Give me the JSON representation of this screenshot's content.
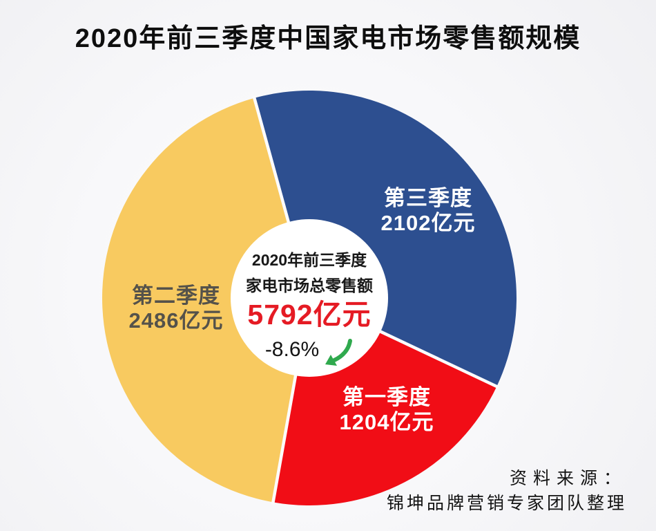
{
  "chart_data": {
    "type": "pie",
    "title": "2020年前三季度中国家电市场零售额规模",
    "unit": "亿元",
    "total": 5792,
    "start_angle_deg": -105.4,
    "legend_position": "labels-on-slices",
    "slices": [
      {
        "name": "第三季度",
        "value": 2102,
        "value_label": "2102亿元",
        "color": "#2d4f90",
        "label_color": "#ffffff"
      },
      {
        "name": "第一季度",
        "value": 1204,
        "value_label": "1204亿元",
        "color": "#f10d16",
        "label_color": "#ffffff"
      },
      {
        "name": "第二季度",
        "value": 2486,
        "value_label": "2486亿元",
        "color": "#f8ca60",
        "label_color": "#55524a"
      }
    ],
    "center": {
      "line1": "2020年前三季度",
      "line2": "家电市场总零售额",
      "value_label": "5792亿元",
      "change_label": "-8.6%",
      "value_color": "#e51b24",
      "arrow_color": "#2fa94d",
      "arrow_icon": "curved-down-left-arrow"
    }
  },
  "source": {
    "label": "资料来源：",
    "name": "锦坤品牌营销专家团队整理"
  }
}
